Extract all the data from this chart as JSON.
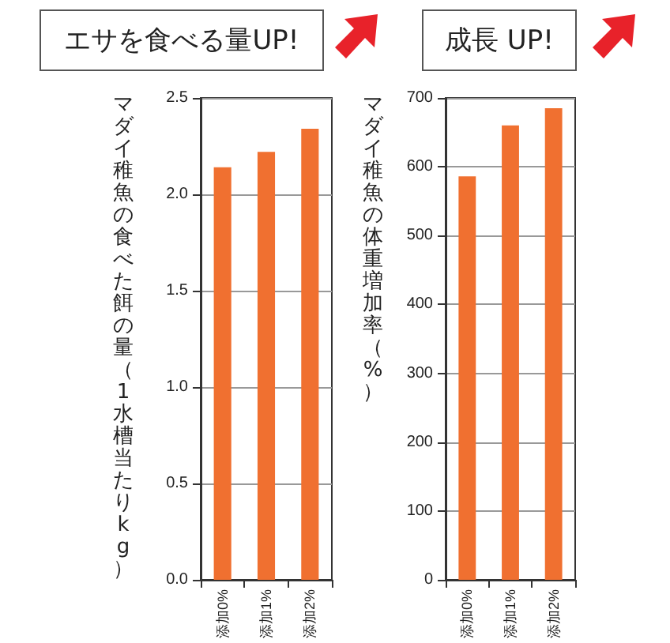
{
  "chart_data": [
    {
      "type": "bar",
      "title": "エサを食べる量UP!",
      "ylabel": "マダイ稚魚の食べた餌の量（1水槽当たりkg）",
      "categories": [
        "添加0%",
        "添加1%",
        "添加2%"
      ],
      "values": [
        2.14,
        2.22,
        2.34
      ],
      "color": "#f07030",
      "ylim": [
        0,
        2.5
      ],
      "yticks": [
        {
          "value": 0,
          "label": "0.0"
        },
        {
          "value": 0.5,
          "label": "0.5"
        },
        {
          "value": 1,
          "label": "1.0"
        },
        {
          "value": 1.5,
          "label": "1.5"
        },
        {
          "value": 2,
          "label": "2.0"
        },
        {
          "value": 2.5,
          "label": "2.5"
        }
      ],
      "grid": "y"
    },
    {
      "type": "bar",
      "title": "成長 UP!",
      "ylabel": "マダイ稚魚の体重増加率（%）",
      "categories": [
        "添加0%",
        "添加1%",
        "添加2%"
      ],
      "values": [
        586,
        660,
        685
      ],
      "color": "#f07030",
      "ylim": [
        0,
        700
      ],
      "yticks": [
        0,
        100,
        200,
        300,
        400,
        500,
        600,
        700
      ],
      "grid": "y"
    }
  ]
}
